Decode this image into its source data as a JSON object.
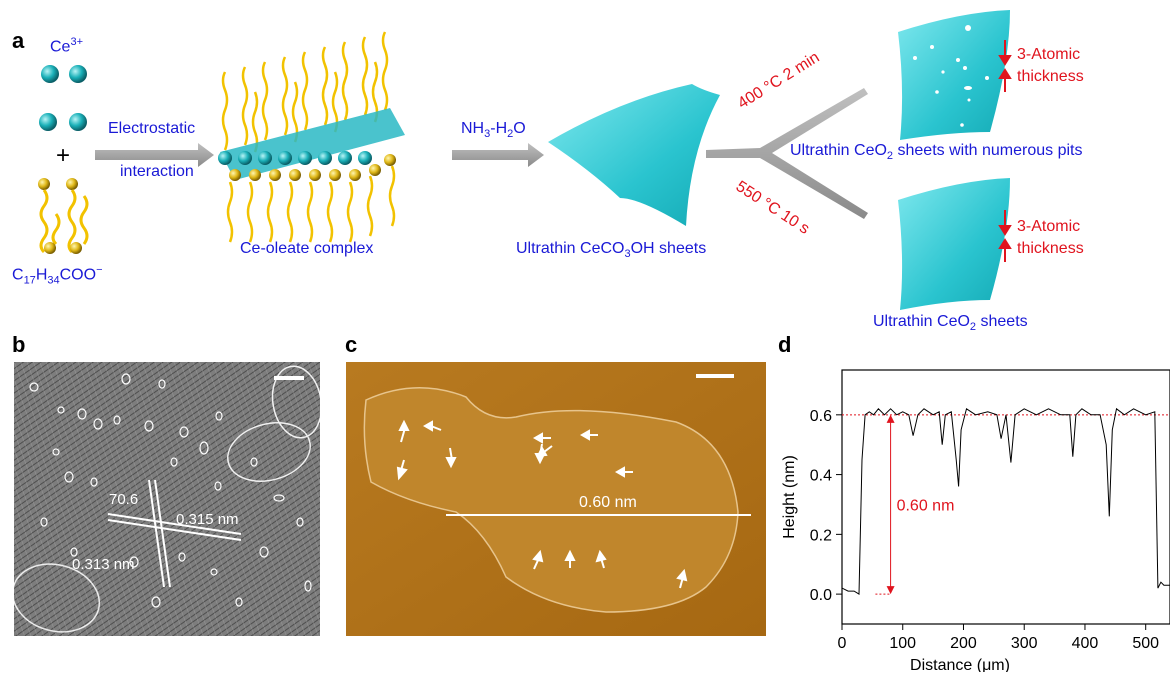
{
  "panel_a": {
    "letter": "a",
    "ce_ion": "Ce",
    "ce_charge": "3+",
    "plus": "+",
    "oleate": {
      "p1": "C",
      "s1": "17",
      "p2": "H",
      "s2": "34",
      "p3": "COO",
      "sup": "−"
    },
    "step1_line1": "Electrostatic",
    "step1_line2": "interaction",
    "complex_label": "Ce-oleate complex",
    "step2": {
      "p1": "NH",
      "s1": "3",
      "p2": "-H",
      "s2": "2",
      "p3": "O"
    },
    "cecooh_label": {
      "p1": "Ultrathin CeCO",
      "s1": "3",
      "p2": "OH sheets"
    },
    "branch_top": "400 °C 2 min",
    "branch_bottom": "550 °C 10 s",
    "product_top": {
      "p1": "Ultrathin CeO",
      "s1": "2",
      "p2": " sheets with numerous pits"
    },
    "product_bottom": {
      "p1": "Ultrathin CeO",
      "s1": "2",
      "p2": " sheets"
    },
    "thickness_line1": "3-Atomic",
    "thickness_line2": "thickness"
  },
  "panel_b": {
    "letter": "b",
    "angle": "70.6",
    "spacing1": "0.315 nm",
    "spacing2": "0.313 nm"
  },
  "panel_c": {
    "letter": "c",
    "line_label": "0.60 nm"
  },
  "panel_d": {
    "letter": "d",
    "annotation": "0.60 nm"
  },
  "chart_data": {
    "type": "line",
    "title": "",
    "xlabel": "Distance (μm)",
    "ylabel": "Height (nm)",
    "xlim": [
      0,
      540
    ],
    "ylim": [
      -0.1,
      0.75
    ],
    "x_ticks": [
      0,
      100,
      200,
      300,
      400,
      500
    ],
    "y_ticks": [
      0.0,
      0.2,
      0.4,
      0.6
    ],
    "reference_lines": [
      0.6,
      0.0
    ],
    "series": [
      {
        "x": [
          0,
          10,
          20,
          28,
          33,
          38,
          45,
          52,
          60,
          70,
          80,
          90,
          100,
          110,
          117,
          125,
          135,
          150,
          160,
          165,
          170,
          180,
          188,
          192,
          196,
          205,
          220,
          240,
          255,
          262,
          270,
          278,
          285,
          300,
          320,
          340,
          360,
          375,
          380,
          385,
          395,
          410,
          425,
          435,
          440,
          445,
          452,
          465,
          480,
          500,
          515,
          520,
          525,
          530,
          540
        ],
        "values": [
          0.02,
          0.01,
          0.01,
          0.0,
          0.45,
          0.6,
          0.61,
          0.6,
          0.62,
          0.6,
          0.62,
          0.6,
          0.61,
          0.6,
          0.53,
          0.6,
          0.62,
          0.6,
          0.61,
          0.5,
          0.6,
          0.61,
          0.45,
          0.36,
          0.55,
          0.62,
          0.6,
          0.61,
          0.6,
          0.52,
          0.6,
          0.44,
          0.6,
          0.62,
          0.6,
          0.62,
          0.6,
          0.6,
          0.46,
          0.6,
          0.62,
          0.6,
          0.6,
          0.5,
          0.26,
          0.55,
          0.62,
          0.6,
          0.62,
          0.6,
          0.61,
          0.02,
          0.04,
          0.03,
          0.03
        ]
      }
    ]
  }
}
